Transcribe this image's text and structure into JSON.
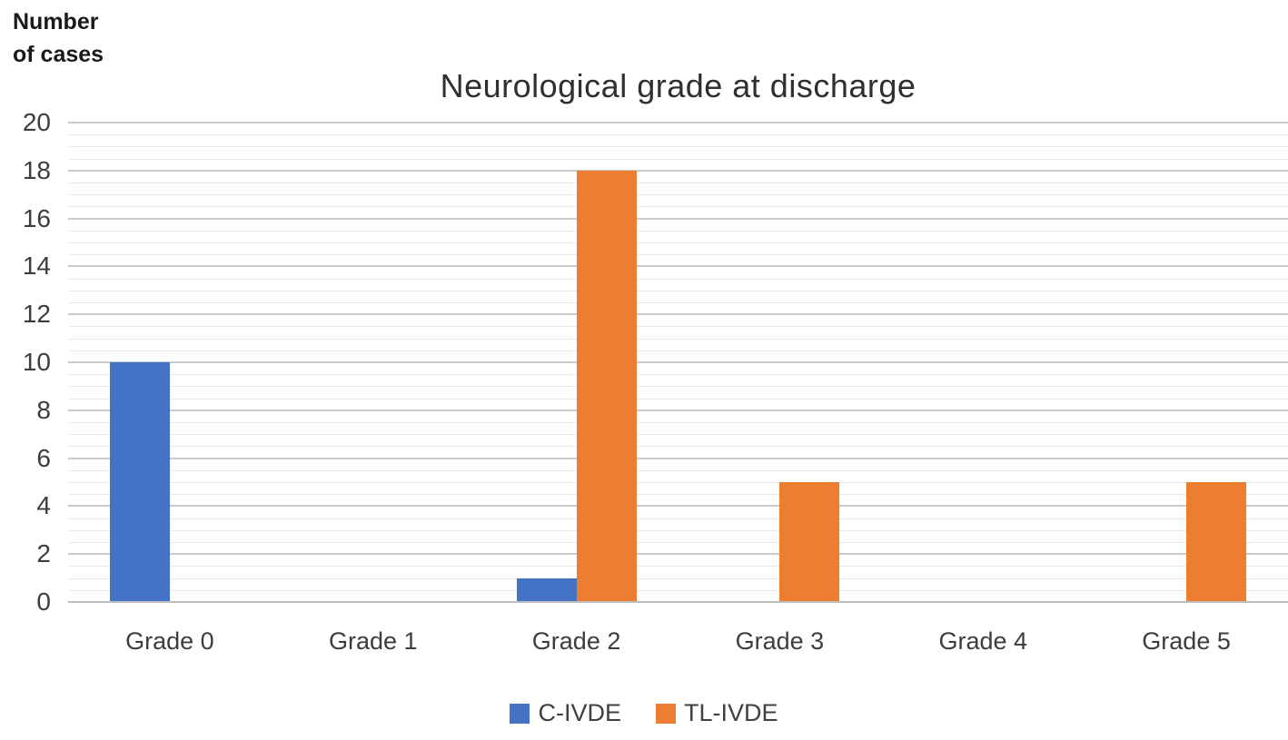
{
  "chart_data": {
    "type": "bar",
    "title": "Neurological grade at discharge",
    "ylabel": "Number of cases",
    "ylabel_lines": [
      "Number",
      "of cases"
    ],
    "xlabel": "",
    "categories": [
      "Grade 0",
      "Grade 1",
      "Grade 2",
      "Grade 3",
      "Grade 4",
      "Grade 5"
    ],
    "series": [
      {
        "name": "C-IVDE",
        "color": "#4472C4",
        "values": [
          10,
          0,
          1,
          0,
          0,
          0
        ]
      },
      {
        "name": "TL-IVDE",
        "color": "#ED7D31",
        "values": [
          0,
          0,
          18,
          5,
          0,
          5
        ]
      }
    ],
    "ylim": [
      0,
      20
    ],
    "y_ticks": [
      0,
      2,
      4,
      6,
      8,
      10,
      12,
      14,
      16,
      18,
      20
    ],
    "y_major_step": 2,
    "y_minor_step": 0.5,
    "grid": true,
    "legend_position": "bottom"
  }
}
